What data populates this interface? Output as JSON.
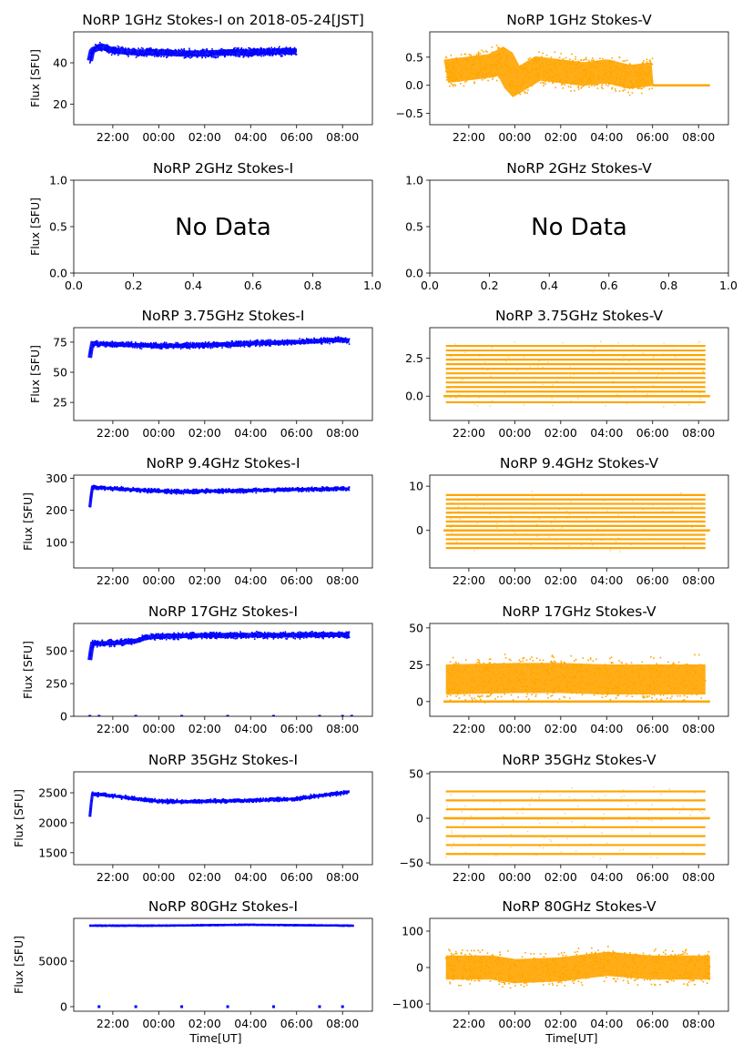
{
  "figure": {
    "xlabel": "Time[UT]"
  },
  "chart_data": [
    {
      "type": "scatter",
      "title": "NoRP 1GHz Stokes-I on 2018-05-24[JST]",
      "ylabel": "Flux [SFU]",
      "xlabel": "",
      "xlim": [
        -3.7,
        9.3
      ],
      "ylim": [
        10,
        55
      ],
      "x_ticks": [
        -2,
        0,
        2,
        4,
        6,
        8
      ],
      "x_tick_labels": [
        "22:00",
        "00:00",
        "02:00",
        "04:00",
        "06:00",
        "08:00"
      ],
      "y_ticks": [
        20,
        40
      ],
      "y_tick_labels": [
        "20",
        "40"
      ],
      "color": "#0000ff",
      "series_points": [
        [
          -3,
          41
        ],
        [
          -2.9,
          46
        ],
        [
          -2.5,
          48
        ],
        [
          -2,
          46
        ],
        [
          -1,
          45
        ],
        [
          0,
          45
        ],
        [
          1,
          44.5
        ],
        [
          2,
          44.5
        ],
        [
          3,
          45
        ],
        [
          4,
          45
        ],
        [
          5,
          45.5
        ],
        [
          6,
          45.5
        ]
      ],
      "band": 2.5,
      "no_data": false
    },
    {
      "type": "scatter",
      "title": "NoRP 1GHz Stokes-V",
      "ylabel": "",
      "xlabel": "",
      "xlim": [
        -3.7,
        9.3
      ],
      "ylim": [
        -0.7,
        0.95
      ],
      "x_ticks": [
        -2,
        0,
        2,
        4,
        6,
        8
      ],
      "x_tick_labels": [
        "22:00",
        "00:00",
        "02:00",
        "04:00",
        "06:00",
        "08:00"
      ],
      "y_ticks": [
        -0.5,
        0,
        0.5
      ],
      "y_tick_labels": [
        "−0.5",
        "0.0",
        "0.5"
      ],
      "color": "#ffa500",
      "series_points": [
        [
          -3,
          0.25
        ],
        [
          -2,
          0.3
        ],
        [
          -1,
          0.35
        ],
        [
          -0.5,
          0.45
        ],
        [
          0,
          0.05
        ],
        [
          1,
          0.3
        ],
        [
          2,
          0.25
        ],
        [
          3,
          0.2
        ],
        [
          4,
          0.25
        ],
        [
          5,
          0.15
        ],
        [
          6,
          0.2
        ]
      ],
      "band": 0.35,
      "flat_segment": [
        6,
        8.5,
        0
      ],
      "no_data": false
    },
    {
      "type": "scatter",
      "title": "NoRP 2GHz Stokes-I",
      "ylabel": "Flux [SFU]",
      "xlabel": "",
      "xlim": [
        0,
        1
      ],
      "ylim": [
        0,
        1
      ],
      "x_ticks": [
        0,
        0.2,
        0.4,
        0.6,
        0.8,
        1.0
      ],
      "x_tick_labels": [
        "0.0",
        "0.2",
        "0.4",
        "0.6",
        "0.8",
        "1.0"
      ],
      "y_ticks": [
        0,
        0.5,
        1.0
      ],
      "y_tick_labels": [
        "0.0",
        "0.5",
        "1.0"
      ],
      "no_data": true,
      "no_data_text": "No Data"
    },
    {
      "type": "scatter",
      "title": "NoRP 2GHz Stokes-V",
      "ylabel": "",
      "xlabel": "",
      "xlim": [
        0,
        1
      ],
      "ylim": [
        0,
        1
      ],
      "x_ticks": [
        0,
        0.2,
        0.4,
        0.6,
        0.8,
        1.0
      ],
      "x_tick_labels": [
        "0.0",
        "0.2",
        "0.4",
        "0.6",
        "0.8",
        "1.0"
      ],
      "y_ticks": [
        0,
        0.5,
        1.0
      ],
      "y_tick_labels": [
        "0.0",
        "0.5",
        "1.0"
      ],
      "no_data": true,
      "no_data_text": "No Data"
    },
    {
      "type": "scatter",
      "title": "NoRP 3.75GHz Stokes-I",
      "ylabel": "Flux [SFU]",
      "xlabel": "",
      "xlim": [
        -3.7,
        9.3
      ],
      "ylim": [
        10,
        87
      ],
      "x_ticks": [
        -2,
        0,
        2,
        4,
        6,
        8
      ],
      "x_tick_labels": [
        "22:00",
        "00:00",
        "02:00",
        "04:00",
        "06:00",
        "08:00"
      ],
      "y_ticks": [
        25,
        50,
        75
      ],
      "y_tick_labels": [
        "25",
        "50",
        "75"
      ],
      "color": "#0000ff",
      "series_points": [
        [
          -3,
          62
        ],
        [
          -2.9,
          74
        ],
        [
          -2,
          73
        ],
        [
          0,
          72
        ],
        [
          1,
          72
        ],
        [
          2,
          72.5
        ],
        [
          4,
          74
        ],
        [
          6,
          75
        ],
        [
          8,
          77
        ],
        [
          8.3,
          76
        ]
      ],
      "band": 3,
      "no_data": false
    },
    {
      "type": "scatter",
      "title": "NoRP 3.75GHz Stokes-V",
      "ylabel": "",
      "xlabel": "",
      "xlim": [
        -3.7,
        9.3
      ],
      "ylim": [
        -1.6,
        4.5
      ],
      "x_ticks": [
        -2,
        0,
        2,
        4,
        6,
        8
      ],
      "x_tick_labels": [
        "22:00",
        "00:00",
        "02:00",
        "04:00",
        "06:00",
        "08:00"
      ],
      "y_ticks": [
        0,
        2.5
      ],
      "y_tick_labels": [
        "0.0",
        "2.5"
      ],
      "color": "#ffa500",
      "stripes": [
        -0.4,
        0,
        0.3,
        0.6,
        0.9,
        1.2,
        1.5,
        1.8,
        2.1,
        2.4,
        2.7,
        3.0,
        3.3
      ],
      "stripe_range": [
        -3,
        8.3
      ],
      "flat_segment": [
        -3.1,
        8.5,
        0
      ],
      "no_data": false
    },
    {
      "type": "scatter",
      "title": "NoRP 9.4GHz Stokes-I",
      "ylabel": "Flux [SFU]",
      "xlabel": "",
      "xlim": [
        -3.7,
        9.3
      ],
      "ylim": [
        20,
        310
      ],
      "x_ticks": [
        -2,
        0,
        2,
        4,
        6,
        8
      ],
      "x_tick_labels": [
        "22:00",
        "00:00",
        "02:00",
        "04:00",
        "06:00",
        "08:00"
      ],
      "y_ticks": [
        100,
        200,
        300
      ],
      "y_tick_labels": [
        "100",
        "200",
        "300"
      ],
      "color": "#0000ff",
      "series_points": [
        [
          -3,
          210
        ],
        [
          -2.9,
          272
        ],
        [
          -2,
          268
        ],
        [
          0,
          260
        ],
        [
          1,
          258
        ],
        [
          2,
          260
        ],
        [
          4,
          262
        ],
        [
          6,
          265
        ],
        [
          8,
          268
        ],
        [
          8.3,
          266
        ]
      ],
      "band": 8,
      "no_data": false
    },
    {
      "type": "scatter",
      "title": "NoRP 9.4GHz Stokes-V",
      "ylabel": "",
      "xlabel": "",
      "xlim": [
        -3.7,
        9.3
      ],
      "ylim": [
        -8.5,
        12.5
      ],
      "x_ticks": [
        -2,
        0,
        2,
        4,
        6,
        8
      ],
      "x_tick_labels": [
        "22:00",
        "00:00",
        "02:00",
        "04:00",
        "06:00",
        "08:00"
      ],
      "y_ticks": [
        0,
        10
      ],
      "y_tick_labels": [
        "0",
        "10"
      ],
      "color": "#ffa500",
      "stripes": [
        -4,
        -3,
        -2,
        -1,
        0,
        1,
        2,
        3,
        4,
        5,
        6,
        7,
        8
      ],
      "stripe_range": [
        -3,
        8.3
      ],
      "flat_segment": [
        -3.1,
        8.5,
        0
      ],
      "no_data": false
    },
    {
      "type": "scatter",
      "title": "NoRP 17GHz Stokes-I",
      "ylabel": "Flux [SFU]",
      "xlabel": "",
      "xlim": [
        -3.7,
        9.3
      ],
      "ylim": [
        0,
        710
      ],
      "x_ticks": [
        -2,
        0,
        2,
        4,
        6,
        8
      ],
      "x_tick_labels": [
        "22:00",
        "00:00",
        "02:00",
        "04:00",
        "06:00",
        "08:00"
      ],
      "y_ticks": [
        0,
        250,
        500
      ],
      "y_tick_labels": [
        "0",
        "250",
        "500"
      ],
      "color": "#0000ff",
      "series_points": [
        [
          -3,
          430
        ],
        [
          -2.9,
          555
        ],
        [
          -2,
          560
        ],
        [
          -1,
          575
        ],
        [
          -0.5,
          605
        ],
        [
          0,
          610
        ],
        [
          1,
          615
        ],
        [
          2,
          620
        ],
        [
          4,
          620
        ],
        [
          6,
          620
        ],
        [
          8,
          625
        ],
        [
          8.3,
          620
        ]
      ],
      "band": 30,
      "zero_dots": [
        -3,
        -2.6,
        -1,
        1,
        3,
        5,
        7,
        8,
        8.4
      ],
      "no_data": false
    },
    {
      "type": "scatter",
      "title": "NoRP 17GHz Stokes-V",
      "ylabel": "",
      "xlabel": "",
      "xlim": [
        -3.7,
        9.3
      ],
      "ylim": [
        -10,
        53
      ],
      "x_ticks": [
        -2,
        0,
        2,
        4,
        6,
        8
      ],
      "x_tick_labels": [
        "22:00",
        "00:00",
        "02:00",
        "04:00",
        "06:00",
        "08:00"
      ],
      "y_ticks": [
        0,
        25,
        50
      ],
      "y_tick_labels": [
        "0",
        "25",
        "50"
      ],
      "color": "#ffa500",
      "series_points": [
        [
          -3,
          15
        ],
        [
          0,
          16
        ],
        [
          2,
          16
        ],
        [
          4,
          15
        ],
        [
          6,
          15
        ],
        [
          8.3,
          15
        ]
      ],
      "band": 17,
      "flat_segment": [
        -3.1,
        8.5,
        0
      ],
      "no_data": false
    },
    {
      "type": "scatter",
      "title": "NoRP 35GHz Stokes-I",
      "ylabel": "Flux [SFU]",
      "xlabel": "",
      "xlim": [
        -3.7,
        9.3
      ],
      "ylim": [
        1300,
        2850
      ],
      "x_ticks": [
        -2,
        0,
        2,
        4,
        6,
        8
      ],
      "x_tick_labels": [
        "22:00",
        "00:00",
        "02:00",
        "04:00",
        "06:00",
        "08:00"
      ],
      "y_ticks": [
        1500,
        2000,
        2500
      ],
      "y_tick_labels": [
        "1500",
        "2000",
        "2500"
      ],
      "color": "#0000ff",
      "series_points": [
        [
          -3,
          2100
        ],
        [
          -2.9,
          2480
        ],
        [
          -2,
          2450
        ],
        [
          -1,
          2400
        ],
        [
          0,
          2360
        ],
        [
          1,
          2350
        ],
        [
          2,
          2360
        ],
        [
          4,
          2370
        ],
        [
          6,
          2400
        ],
        [
          7,
          2450
        ],
        [
          8,
          2500
        ],
        [
          8.3,
          2520
        ]
      ],
      "band": 40,
      "no_data": false
    },
    {
      "type": "scatter",
      "title": "NoRP 35GHz Stokes-V",
      "ylabel": "",
      "xlabel": "",
      "xlim": [
        -3.7,
        9.3
      ],
      "ylim": [
        -52,
        52
      ],
      "x_ticks": [
        -2,
        0,
        2,
        4,
        6,
        8
      ],
      "x_tick_labels": [
        "22:00",
        "00:00",
        "02:00",
        "04:00",
        "06:00",
        "08:00"
      ],
      "y_ticks": [
        -50,
        0,
        50
      ],
      "y_tick_labels": [
        "−50",
        "0",
        "50"
      ],
      "color": "#ffa500",
      "stripes": [
        -40,
        -30,
        -20,
        -10,
        0,
        10,
        20,
        30
      ],
      "stripe_range": [
        -3,
        8.3
      ],
      "flat_segment": [
        -3.1,
        8.5,
        0
      ],
      "no_data": false
    },
    {
      "type": "scatter",
      "title": "NoRP 80GHz Stokes-I",
      "ylabel": "Flux [SFU]",
      "xlabel": "Time[UT]",
      "xlim": [
        -3.7,
        9.3
      ],
      "ylim": [
        -500,
        9700
      ],
      "x_ticks": [
        -2,
        0,
        2,
        4,
        6,
        8
      ],
      "x_tick_labels": [
        "22:00",
        "00:00",
        "02:00",
        "04:00",
        "06:00",
        "08:00"
      ],
      "y_ticks": [
        0,
        5000
      ],
      "y_tick_labels": [
        "0",
        "5000"
      ],
      "color": "#0000ff",
      "series_points": [
        [
          -3,
          8900
        ],
        [
          0,
          8900
        ],
        [
          2,
          8950
        ],
        [
          4,
          9000
        ],
        [
          6,
          8950
        ],
        [
          8.5,
          8900
        ]
      ],
      "band": 80,
      "zero_dots": [
        -2.6,
        -1,
        1,
        3,
        5,
        7,
        8
      ],
      "no_data": false
    },
    {
      "type": "scatter",
      "title": "NoRP 80GHz Stokes-V",
      "ylabel": "",
      "xlabel": "Time[UT]",
      "xlim": [
        -3.7,
        9.3
      ],
      "ylim": [
        -120,
        135
      ],
      "x_ticks": [
        -2,
        0,
        2,
        4,
        6,
        8
      ],
      "x_tick_labels": [
        "22:00",
        "00:00",
        "02:00",
        "04:00",
        "06:00",
        "08:00"
      ],
      "y_ticks": [
        -100,
        0,
        100
      ],
      "y_tick_labels": [
        "−100",
        "0",
        "100"
      ],
      "color": "#ffa500",
      "series_points": [
        [
          -3,
          0
        ],
        [
          -1,
          0
        ],
        [
          0,
          -10
        ],
        [
          2,
          -5
        ],
        [
          4,
          10
        ],
        [
          6,
          0
        ],
        [
          8.5,
          0
        ]
      ],
      "band": 55,
      "no_data": false
    }
  ]
}
